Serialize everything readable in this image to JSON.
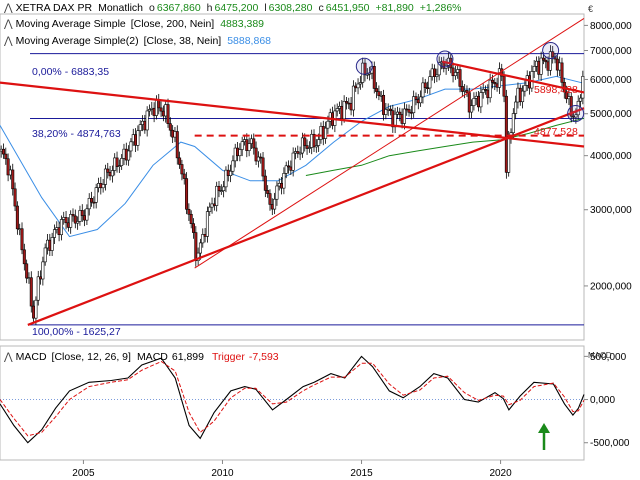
{
  "header": {
    "instrument": "XETRA DAX PR",
    "period": "Monatlich",
    "ohlc": [
      {
        "key": "o",
        "value": "6367,860"
      },
      {
        "key": "h",
        "value": "6475,200"
      },
      {
        "key": "l",
        "value": "6308,280"
      },
      {
        "key": "c",
        "value": "6451,950"
      }
    ],
    "change": "+81,890",
    "change_pct": "+1,286%",
    "currency": "€"
  },
  "legend": [
    {
      "label": "Moving Average Simple",
      "params": "[Close, 200, Nein]",
      "value": "4883,389",
      "color": "#1a8a1a"
    },
    {
      "label": "Moving Average Simple(2)",
      "params": "[Close, 38, Nein]",
      "value": "5888,868",
      "color": "#3a8ee6"
    }
  ],
  "fib_labels": {
    "top": "0,00% - 6883,35",
    "mid": "38,20% - 4874,763",
    "bottom": "100,00% - 1625,27"
  },
  "annotations": {
    "upper": "5898,428",
    "lower": "4877,528"
  },
  "macd": {
    "title": "MACD",
    "params": "[Close, 12, 26, 9]",
    "macd_label": "MACD",
    "macd_value": "61,899",
    "trigger_label": "Trigger",
    "trigger_value": "-7,593",
    "axis_title": "MACD"
  },
  "colors": {
    "up_candle": "#ffffff",
    "down_candle": "#a01818",
    "trend": "#dd1111",
    "fib": "#1a1a9a",
    "ma200": "#1a8a1a",
    "ma38": "#3a8ee6",
    "macd": "#000000",
    "trigger": "#dd1111",
    "arrow": "#1a8a1a"
  },
  "chart_data": [
    {
      "type": "candlestick",
      "title": "XETRA DAX PR",
      "yscale": "log",
      "ylim": [
        1500,
        8500
      ],
      "xlim": [
        2002.0,
        2023.0
      ],
      "yticks": [
        {
          "v": 8000,
          "label": "8000,000"
        },
        {
          "v": 7000,
          "label": "7000,000"
        },
        {
          "v": 6000,
          "label": "6000,000"
        },
        {
          "v": 5000,
          "label": "5000,000"
        },
        {
          "v": 4000,
          "label": "4000,000"
        },
        {
          "v": 3000,
          "label": "3000,000"
        },
        {
          "v": 2000,
          "label": "2000,000"
        }
      ],
      "xticks": [
        {
          "v": 2005,
          "label": "2005"
        },
        {
          "v": 2010,
          "label": "2010"
        },
        {
          "v": 2015,
          "label": "2015"
        },
        {
          "v": 2020,
          "label": "2020"
        }
      ],
      "price_path": [
        [
          2002.0,
          4100
        ],
        [
          2002.3,
          3800
        ],
        [
          2002.7,
          2600
        ],
        [
          2003.2,
          1700
        ],
        [
          2003.6,
          2400
        ],
        [
          2004.2,
          2800
        ],
        [
          2005.0,
          2900
        ],
        [
          2005.8,
          3600
        ],
        [
          2006.5,
          4000
        ],
        [
          2007.1,
          4700
        ],
        [
          2007.5,
          5200
        ],
        [
          2007.9,
          5100
        ],
        [
          2008.3,
          4300
        ],
        [
          2008.8,
          2900
        ],
        [
          2009.1,
          2300
        ],
        [
          2009.6,
          3100
        ],
        [
          2010.1,
          3500
        ],
        [
          2010.6,
          4200
        ],
        [
          2011.0,
          4300
        ],
        [
          2011.4,
          3800
        ],
        [
          2011.7,
          3000
        ],
        [
          2012.2,
          3600
        ],
        [
          2012.8,
          4200
        ],
        [
          2013.4,
          4300
        ],
        [
          2014.0,
          5000
        ],
        [
          2014.6,
          5300
        ],
        [
          2015.0,
          6200
        ],
        [
          2015.3,
          6300
        ],
        [
          2015.7,
          5300
        ],
        [
          2016.1,
          4900
        ],
        [
          2016.6,
          5000
        ],
        [
          2017.1,
          5500
        ],
        [
          2017.5,
          6100
        ],
        [
          2018.0,
          6600
        ],
        [
          2018.4,
          6200
        ],
        [
          2018.9,
          5200
        ],
        [
          2019.4,
          5600
        ],
        [
          2019.9,
          6000
        ],
        [
          2020.1,
          6200
        ],
        [
          2020.2,
          3700
        ],
        [
          2020.5,
          5300
        ],
        [
          2020.9,
          5800
        ],
        [
          2021.3,
          6500
        ],
        [
          2021.7,
          6600
        ],
        [
          2021.95,
          6800
        ],
        [
          2022.2,
          6000
        ],
        [
          2022.5,
          5100
        ],
        [
          2022.75,
          4900
        ],
        [
          2022.85,
          5500
        ],
        [
          2023.0,
          6400
        ]
      ],
      "ma38_path": [
        [
          2002.0,
          4700
        ],
        [
          2003.5,
          3200
        ],
        [
          2004.5,
          2600
        ],
        [
          2005.5,
          2700
        ],
        [
          2006.5,
          3100
        ],
        [
          2007.5,
          3800
        ],
        [
          2008.5,
          4300
        ],
        [
          2009.0,
          4200
        ],
        [
          2010.0,
          3700
        ],
        [
          2011.0,
          3500
        ],
        [
          2012.0,
          3500
        ],
        [
          2013.0,
          3800
        ],
        [
          2014.0,
          4300
        ],
        [
          2015.0,
          4800
        ],
        [
          2016.0,
          5200
        ],
        [
          2017.0,
          5400
        ],
        [
          2018.0,
          5700
        ],
        [
          2019.0,
          5700
        ],
        [
          2020.0,
          5800
        ],
        [
          2021.0,
          5900
        ],
        [
          2022.0,
          6100
        ],
        [
          2023.0,
          5880
        ]
      ],
      "ma200_path": [
        [
          2013.0,
          3600
        ],
        [
          2014.0,
          3700
        ],
        [
          2015.0,
          3800
        ],
        [
          2016.0,
          4000
        ],
        [
          2017.0,
          4100
        ],
        [
          2018.0,
          4200
        ],
        [
          2019.0,
          4300
        ],
        [
          2020.0,
          4350
        ],
        [
          2021.0,
          4500
        ],
        [
          2022.0,
          4700
        ],
        [
          2023.0,
          4880
        ]
      ],
      "fib_levels": [
        6883.35,
        4874.763,
        1625.27
      ],
      "trendlines": [
        {
          "from": [
            2002.0,
            5900
          ],
          "to": [
            2023.0,
            4200
          ],
          "style": "thick"
        },
        {
          "from": [
            2003.0,
            1625
          ],
          "to": [
            2023.0,
            5150
          ],
          "style": "thick"
        },
        {
          "from": [
            2009.0,
            2200
          ],
          "to": [
            2023.0,
            8300
          ],
          "style": "thin"
        },
        {
          "from": [
            2017.9,
            6600
          ],
          "to": [
            2023.0,
            5600
          ],
          "style": "thick"
        },
        {
          "from": [
            2009.0,
            4450
          ],
          "to": [
            2023.0,
            4450
          ],
          "style": "dashed"
        }
      ],
      "highlights": [
        [
          2015.1,
          6300
        ],
        [
          2018.0,
          6550
        ],
        [
          2021.8,
          6850
        ],
        [
          2022.7,
          4900
        ]
      ]
    },
    {
      "type": "line",
      "title": "MACD",
      "ylim": [
        -700000,
        620000
      ],
      "yticks": [
        {
          "v": 500000,
          "label": "500,000"
        },
        {
          "v": 0,
          "label": "0,000"
        },
        {
          "v": -500000,
          "label": "-500,000"
        }
      ],
      "series": [
        {
          "name": "MACD",
          "points": [
            [
              2002.0,
              -50000
            ],
            [
              2002.5,
              -300000
            ],
            [
              2003.0,
              -500000
            ],
            [
              2003.5,
              -350000
            ],
            [
              2004.0,
              -100000
            ],
            [
              2004.5,
              100000
            ],
            [
              2005.2,
              200000
            ],
            [
              2006.0,
              220000
            ],
            [
              2006.6,
              250000
            ],
            [
              2007.1,
              400000
            ],
            [
              2007.8,
              480000
            ],
            [
              2008.3,
              250000
            ],
            [
              2008.8,
              -300000
            ],
            [
              2009.2,
              -450000
            ],
            [
              2009.7,
              -150000
            ],
            [
              2010.3,
              100000
            ],
            [
              2010.8,
              150000
            ],
            [
              2011.2,
              120000
            ],
            [
              2011.8,
              -120000
            ],
            [
              2012.3,
              0
            ],
            [
              2012.9,
              150000
            ],
            [
              2013.3,
              200000
            ],
            [
              2013.9,
              300000
            ],
            [
              2014.4,
              250000
            ],
            [
              2015.0,
              500000
            ],
            [
              2015.4,
              380000
            ],
            [
              2016.0,
              100000
            ],
            [
              2016.5,
              20000
            ],
            [
              2017.1,
              150000
            ],
            [
              2017.6,
              300000
            ],
            [
              2018.1,
              250000
            ],
            [
              2018.7,
              0
            ],
            [
              2019.2,
              -30000
            ],
            [
              2019.8,
              80000
            ],
            [
              2020.1,
              10000
            ],
            [
              2020.3,
              -120000
            ],
            [
              2020.7,
              40000
            ],
            [
              2021.2,
              200000
            ],
            [
              2021.9,
              180000
            ],
            [
              2022.3,
              -50000
            ],
            [
              2022.6,
              -180000
            ],
            [
              2022.8,
              -100000
            ],
            [
              2023.0,
              60000
            ]
          ]
        },
        {
          "name": "Trigger",
          "points": [
            [
              2002.0,
              0
            ],
            [
              2002.5,
              -220000
            ],
            [
              2003.0,
              -420000
            ],
            [
              2003.5,
              -380000
            ],
            [
              2004.0,
              -200000
            ],
            [
              2004.5,
              0
            ],
            [
              2005.2,
              150000
            ],
            [
              2006.0,
              200000
            ],
            [
              2006.6,
              230000
            ],
            [
              2007.1,
              340000
            ],
            [
              2007.8,
              440000
            ],
            [
              2008.3,
              330000
            ],
            [
              2008.8,
              -150000
            ],
            [
              2009.2,
              -380000
            ],
            [
              2009.7,
              -250000
            ],
            [
              2010.3,
              20000
            ],
            [
              2010.8,
              130000
            ],
            [
              2011.2,
              130000
            ],
            [
              2011.8,
              -50000
            ],
            [
              2012.3,
              -30000
            ],
            [
              2012.9,
              100000
            ],
            [
              2013.3,
              170000
            ],
            [
              2013.9,
              260000
            ],
            [
              2014.4,
              260000
            ],
            [
              2015.0,
              420000
            ],
            [
              2015.4,
              420000
            ],
            [
              2016.0,
              180000
            ],
            [
              2016.5,
              50000
            ],
            [
              2017.1,
              110000
            ],
            [
              2017.6,
              250000
            ],
            [
              2018.1,
              270000
            ],
            [
              2018.7,
              80000
            ],
            [
              2019.2,
              -10000
            ],
            [
              2019.8,
              50000
            ],
            [
              2020.1,
              40000
            ],
            [
              2020.3,
              -60000
            ],
            [
              2020.7,
              -10000
            ],
            [
              2021.2,
              150000
            ],
            [
              2021.9,
              190000
            ],
            [
              2022.3,
              30000
            ],
            [
              2022.6,
              -140000
            ],
            [
              2022.8,
              -130000
            ],
            [
              2023.0,
              -7600
            ]
          ]
        }
      ]
    }
  ]
}
